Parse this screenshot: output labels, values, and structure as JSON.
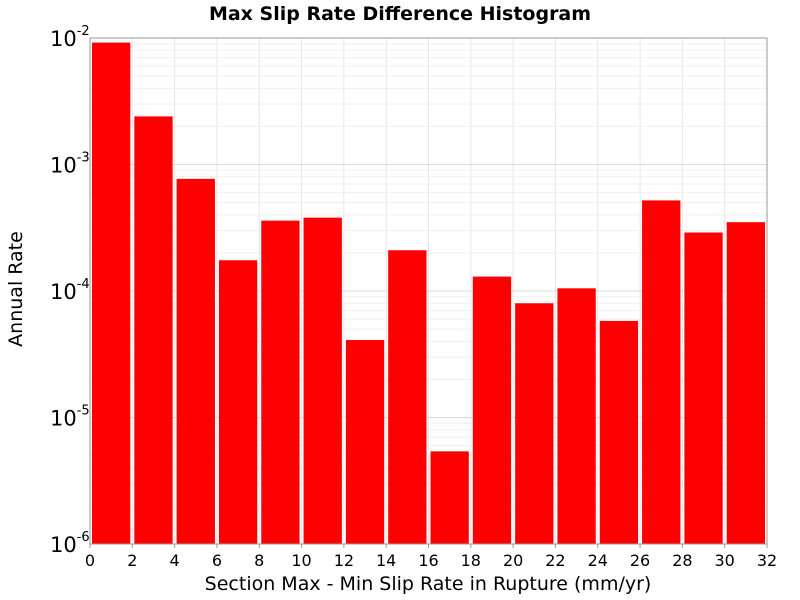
{
  "chart_data": {
    "type": "bar",
    "title": "Max Slip Rate Difference Histogram",
    "xlabel": "Section Max - Min Slip Rate in Rupture (mm/yr)",
    "ylabel": "Annual Rate",
    "xlim": [
      0,
      32
    ],
    "ylim": [
      1e-06,
      0.01
    ],
    "yscale": "log",
    "grid": true,
    "bar_color": "#ff0000",
    "x_ticks": [
      "0",
      "2",
      "4",
      "6",
      "8",
      "10",
      "12",
      "14",
      "16",
      "18",
      "20",
      "22",
      "24",
      "26",
      "28",
      "30",
      "32"
    ],
    "y_ticks": [
      {
        "value": 0.01,
        "base": "10",
        "exp": "-2"
      },
      {
        "value": 0.001,
        "base": "10",
        "exp": "-3"
      },
      {
        "value": 0.0001,
        "base": "10",
        "exp": "-4"
      },
      {
        "value": 1e-05,
        "base": "10",
        "exp": "-5"
      },
      {
        "value": 1e-06,
        "base": "10",
        "exp": "-6"
      }
    ],
    "bins": [
      {
        "x0": 0,
        "x1": 2,
        "value": 0.0092
      },
      {
        "x0": 2,
        "x1": 4,
        "value": 0.0024
      },
      {
        "x0": 4,
        "x1": 6,
        "value": 0.00077
      },
      {
        "x0": 6,
        "x1": 8,
        "value": 0.000175
      },
      {
        "x0": 8,
        "x1": 10,
        "value": 0.00036
      },
      {
        "x0": 10,
        "x1": 12,
        "value": 0.00038
      },
      {
        "x0": 12,
        "x1": 14,
        "value": 4.1e-05
      },
      {
        "x0": 14,
        "x1": 16,
        "value": 0.00021
      },
      {
        "x0": 16,
        "x1": 18,
        "value": 5.4e-06
      },
      {
        "x0": 18,
        "x1": 20,
        "value": 0.00013
      },
      {
        "x0": 20,
        "x1": 22,
        "value": 8e-05
      },
      {
        "x0": 22,
        "x1": 24,
        "value": 0.000105
      },
      {
        "x0": 24,
        "x1": 26,
        "value": 5.8e-05
      },
      {
        "x0": 26,
        "x1": 28,
        "value": 0.00052
      },
      {
        "x0": 28,
        "x1": 30,
        "value": 0.00029
      },
      {
        "x0": 30,
        "x1": 32,
        "value": 0.00035
      }
    ]
  }
}
